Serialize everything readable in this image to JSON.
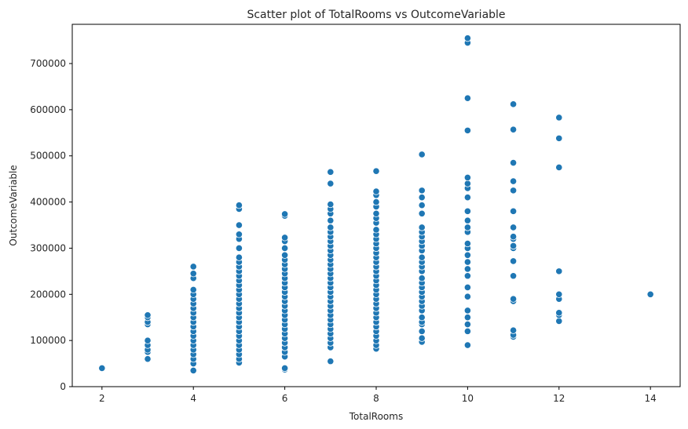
{
  "chart_data": {
    "type": "scatter",
    "title": "Scatter plot of TotalRooms vs OutcomeVariable",
    "xlabel": "TotalRooms",
    "ylabel": "OutcomeVariable",
    "xlim": [
      1.35,
      14.65
    ],
    "ylim": [
      0,
      785000
    ],
    "x_ticks": [
      2,
      4,
      6,
      8,
      10,
      12,
      14
    ],
    "y_ticks": [
      0,
      100000,
      200000,
      300000,
      400000,
      500000,
      600000,
      700000
    ],
    "grid": false,
    "legend": "none",
    "point_color": "#1f77b4",
    "point_edge_color": "#ffffff",
    "series": [
      {
        "values": [
          {
            "x": 2,
            "y": 40000
          },
          {
            "x": 3,
            "y": 60000
          },
          {
            "x": 3,
            "y": 75000
          },
          {
            "x": 3,
            "y": 80000
          },
          {
            "x": 3,
            "y": 90000
          },
          {
            "x": 3,
            "y": 100000
          },
          {
            "x": 3,
            "y": 135000
          },
          {
            "x": 3,
            "y": 140000
          },
          {
            "x": 3,
            "y": 150000
          },
          {
            "x": 3,
            "y": 155000
          },
          {
            "x": 4,
            "y": 35000
          },
          {
            "x": 4,
            "y": 50000
          },
          {
            "x": 4,
            "y": 60000
          },
          {
            "x": 4,
            "y": 70000
          },
          {
            "x": 4,
            "y": 80000
          },
          {
            "x": 4,
            "y": 90000
          },
          {
            "x": 4,
            "y": 100000
          },
          {
            "x": 4,
            "y": 110000
          },
          {
            "x": 4,
            "y": 120000
          },
          {
            "x": 4,
            "y": 130000
          },
          {
            "x": 4,
            "y": 140000
          },
          {
            "x": 4,
            "y": 150000
          },
          {
            "x": 4,
            "y": 160000
          },
          {
            "x": 4,
            "y": 170000
          },
          {
            "x": 4,
            "y": 180000
          },
          {
            "x": 4,
            "y": 190000
          },
          {
            "x": 4,
            "y": 200000
          },
          {
            "x": 4,
            "y": 210000
          },
          {
            "x": 4,
            "y": 235000
          },
          {
            "x": 4,
            "y": 245000
          },
          {
            "x": 4,
            "y": 260000
          },
          {
            "x": 5,
            "y": 52000
          },
          {
            "x": 5,
            "y": 60000
          },
          {
            "x": 5,
            "y": 70000
          },
          {
            "x": 5,
            "y": 80000
          },
          {
            "x": 5,
            "y": 90000
          },
          {
            "x": 5,
            "y": 100000
          },
          {
            "x": 5,
            "y": 110000
          },
          {
            "x": 5,
            "y": 120000
          },
          {
            "x": 5,
            "y": 130000
          },
          {
            "x": 5,
            "y": 140000
          },
          {
            "x": 5,
            "y": 150000
          },
          {
            "x": 5,
            "y": 160000
          },
          {
            "x": 5,
            "y": 170000
          },
          {
            "x": 5,
            "y": 180000
          },
          {
            "x": 5,
            "y": 190000
          },
          {
            "x": 5,
            "y": 200000
          },
          {
            "x": 5,
            "y": 210000
          },
          {
            "x": 5,
            "y": 220000
          },
          {
            "x": 5,
            "y": 230000
          },
          {
            "x": 5,
            "y": 240000
          },
          {
            "x": 5,
            "y": 250000
          },
          {
            "x": 5,
            "y": 260000
          },
          {
            "x": 5,
            "y": 270000
          },
          {
            "x": 5,
            "y": 280000
          },
          {
            "x": 5,
            "y": 300000
          },
          {
            "x": 5,
            "y": 320000
          },
          {
            "x": 5,
            "y": 330000
          },
          {
            "x": 5,
            "y": 350000
          },
          {
            "x": 5,
            "y": 385000
          },
          {
            "x": 5,
            "y": 393000
          },
          {
            "x": 6,
            "y": 37000
          },
          {
            "x": 6,
            "y": 40000
          },
          {
            "x": 6,
            "y": 65000
          },
          {
            "x": 6,
            "y": 75000
          },
          {
            "x": 6,
            "y": 85000
          },
          {
            "x": 6,
            "y": 95000
          },
          {
            "x": 6,
            "y": 105000
          },
          {
            "x": 6,
            "y": 115000
          },
          {
            "x": 6,
            "y": 125000
          },
          {
            "x": 6,
            "y": 135000
          },
          {
            "x": 6,
            "y": 145000
          },
          {
            "x": 6,
            "y": 155000
          },
          {
            "x": 6,
            "y": 165000
          },
          {
            "x": 6,
            "y": 175000
          },
          {
            "x": 6,
            "y": 185000
          },
          {
            "x": 6,
            "y": 195000
          },
          {
            "x": 6,
            "y": 205000
          },
          {
            "x": 6,
            "y": 215000
          },
          {
            "x": 6,
            "y": 225000
          },
          {
            "x": 6,
            "y": 235000
          },
          {
            "x": 6,
            "y": 245000
          },
          {
            "x": 6,
            "y": 255000
          },
          {
            "x": 6,
            "y": 265000
          },
          {
            "x": 6,
            "y": 275000
          },
          {
            "x": 6,
            "y": 285000
          },
          {
            "x": 6,
            "y": 300000
          },
          {
            "x": 6,
            "y": 315000
          },
          {
            "x": 6,
            "y": 323000
          },
          {
            "x": 6,
            "y": 370000
          },
          {
            "x": 6,
            "y": 374000
          },
          {
            "x": 7,
            "y": 55000
          },
          {
            "x": 7,
            "y": 85000
          },
          {
            "x": 7,
            "y": 95000
          },
          {
            "x": 7,
            "y": 105000
          },
          {
            "x": 7,
            "y": 115000
          },
          {
            "x": 7,
            "y": 125000
          },
          {
            "x": 7,
            "y": 135000
          },
          {
            "x": 7,
            "y": 145000
          },
          {
            "x": 7,
            "y": 155000
          },
          {
            "x": 7,
            "y": 165000
          },
          {
            "x": 7,
            "y": 175000
          },
          {
            "x": 7,
            "y": 185000
          },
          {
            "x": 7,
            "y": 195000
          },
          {
            "x": 7,
            "y": 205000
          },
          {
            "x": 7,
            "y": 215000
          },
          {
            "x": 7,
            "y": 225000
          },
          {
            "x": 7,
            "y": 235000
          },
          {
            "x": 7,
            "y": 245000
          },
          {
            "x": 7,
            "y": 255000
          },
          {
            "x": 7,
            "y": 265000
          },
          {
            "x": 7,
            "y": 275000
          },
          {
            "x": 7,
            "y": 285000
          },
          {
            "x": 7,
            "y": 295000
          },
          {
            "x": 7,
            "y": 305000
          },
          {
            "x": 7,
            "y": 315000
          },
          {
            "x": 7,
            "y": 325000
          },
          {
            "x": 7,
            "y": 335000
          },
          {
            "x": 7,
            "y": 345000
          },
          {
            "x": 7,
            "y": 360000
          },
          {
            "x": 7,
            "y": 375000
          },
          {
            "x": 7,
            "y": 385000
          },
          {
            "x": 7,
            "y": 395000
          },
          {
            "x": 7,
            "y": 440000
          },
          {
            "x": 7,
            "y": 465000
          },
          {
            "x": 8,
            "y": 82000
          },
          {
            "x": 8,
            "y": 90000
          },
          {
            "x": 8,
            "y": 100000
          },
          {
            "x": 8,
            "y": 110000
          },
          {
            "x": 8,
            "y": 120000
          },
          {
            "x": 8,
            "y": 130000
          },
          {
            "x": 8,
            "y": 140000
          },
          {
            "x": 8,
            "y": 150000
          },
          {
            "x": 8,
            "y": 160000
          },
          {
            "x": 8,
            "y": 170000
          },
          {
            "x": 8,
            "y": 180000
          },
          {
            "x": 8,
            "y": 190000
          },
          {
            "x": 8,
            "y": 200000
          },
          {
            "x": 8,
            "y": 210000
          },
          {
            "x": 8,
            "y": 220000
          },
          {
            "x": 8,
            "y": 230000
          },
          {
            "x": 8,
            "y": 240000
          },
          {
            "x": 8,
            "y": 250000
          },
          {
            "x": 8,
            "y": 260000
          },
          {
            "x": 8,
            "y": 270000
          },
          {
            "x": 8,
            "y": 280000
          },
          {
            "x": 8,
            "y": 290000
          },
          {
            "x": 8,
            "y": 300000
          },
          {
            "x": 8,
            "y": 310000
          },
          {
            "x": 8,
            "y": 320000
          },
          {
            "x": 8,
            "y": 330000
          },
          {
            "x": 8,
            "y": 340000
          },
          {
            "x": 8,
            "y": 355000
          },
          {
            "x": 8,
            "y": 365000
          },
          {
            "x": 8,
            "y": 375000
          },
          {
            "x": 8,
            "y": 390000
          },
          {
            "x": 8,
            "y": 400000
          },
          {
            "x": 8,
            "y": 415000
          },
          {
            "x": 8,
            "y": 423000
          },
          {
            "x": 8,
            "y": 467000
          },
          {
            "x": 9,
            "y": 97000
          },
          {
            "x": 9,
            "y": 105000
          },
          {
            "x": 9,
            "y": 120000
          },
          {
            "x": 9,
            "y": 135000
          },
          {
            "x": 9,
            "y": 140000
          },
          {
            "x": 9,
            "y": 150000
          },
          {
            "x": 9,
            "y": 165000
          },
          {
            "x": 9,
            "y": 175000
          },
          {
            "x": 9,
            "y": 185000
          },
          {
            "x": 9,
            "y": 195000
          },
          {
            "x": 9,
            "y": 205000
          },
          {
            "x": 9,
            "y": 215000
          },
          {
            "x": 9,
            "y": 225000
          },
          {
            "x": 9,
            "y": 235000
          },
          {
            "x": 9,
            "y": 250000
          },
          {
            "x": 9,
            "y": 260000
          },
          {
            "x": 9,
            "y": 270000
          },
          {
            "x": 9,
            "y": 280000
          },
          {
            "x": 9,
            "y": 295000
          },
          {
            "x": 9,
            "y": 305000
          },
          {
            "x": 9,
            "y": 315000
          },
          {
            "x": 9,
            "y": 325000
          },
          {
            "x": 9,
            "y": 335000
          },
          {
            "x": 9,
            "y": 345000
          },
          {
            "x": 9,
            "y": 375000
          },
          {
            "x": 9,
            "y": 393000
          },
          {
            "x": 9,
            "y": 410000
          },
          {
            "x": 9,
            "y": 425000
          },
          {
            "x": 9,
            "y": 503000
          },
          {
            "x": 10,
            "y": 90000
          },
          {
            "x": 10,
            "y": 120000
          },
          {
            "x": 10,
            "y": 135000
          },
          {
            "x": 10,
            "y": 150000
          },
          {
            "x": 10,
            "y": 165000
          },
          {
            "x": 10,
            "y": 195000
          },
          {
            "x": 10,
            "y": 215000
          },
          {
            "x": 10,
            "y": 240000
          },
          {
            "x": 10,
            "y": 255000
          },
          {
            "x": 10,
            "y": 270000
          },
          {
            "x": 10,
            "y": 285000
          },
          {
            "x": 10,
            "y": 300000
          },
          {
            "x": 10,
            "y": 310000
          },
          {
            "x": 10,
            "y": 335000
          },
          {
            "x": 10,
            "y": 345000
          },
          {
            "x": 10,
            "y": 360000
          },
          {
            "x": 10,
            "y": 380000
          },
          {
            "x": 10,
            "y": 410000
          },
          {
            "x": 10,
            "y": 430000
          },
          {
            "x": 10,
            "y": 440000
          },
          {
            "x": 10,
            "y": 453000
          },
          {
            "x": 10,
            "y": 555000
          },
          {
            "x": 10,
            "y": 625000
          },
          {
            "x": 10,
            "y": 745000
          },
          {
            "x": 10,
            "y": 755000
          },
          {
            "x": 11,
            "y": 108000
          },
          {
            "x": 11,
            "y": 112000
          },
          {
            "x": 11,
            "y": 122000
          },
          {
            "x": 11,
            "y": 185000
          },
          {
            "x": 11,
            "y": 190000
          },
          {
            "x": 11,
            "y": 240000
          },
          {
            "x": 11,
            "y": 272000
          },
          {
            "x": 11,
            "y": 300000
          },
          {
            "x": 11,
            "y": 305000
          },
          {
            "x": 11,
            "y": 320000
          },
          {
            "x": 11,
            "y": 325000
          },
          {
            "x": 11,
            "y": 345000
          },
          {
            "x": 11,
            "y": 380000
          },
          {
            "x": 11,
            "y": 425000
          },
          {
            "x": 11,
            "y": 445000
          },
          {
            "x": 11,
            "y": 485000
          },
          {
            "x": 11,
            "y": 557000
          },
          {
            "x": 11,
            "y": 612000
          },
          {
            "x": 12,
            "y": 142000
          },
          {
            "x": 12,
            "y": 155000
          },
          {
            "x": 12,
            "y": 160000
          },
          {
            "x": 12,
            "y": 190000
          },
          {
            "x": 12,
            "y": 200000
          },
          {
            "x": 12,
            "y": 250000
          },
          {
            "x": 12,
            "y": 475000
          },
          {
            "x": 12,
            "y": 538000
          },
          {
            "x": 12,
            "y": 583000
          },
          {
            "x": 14,
            "y": 200000
          }
        ]
      }
    ]
  }
}
